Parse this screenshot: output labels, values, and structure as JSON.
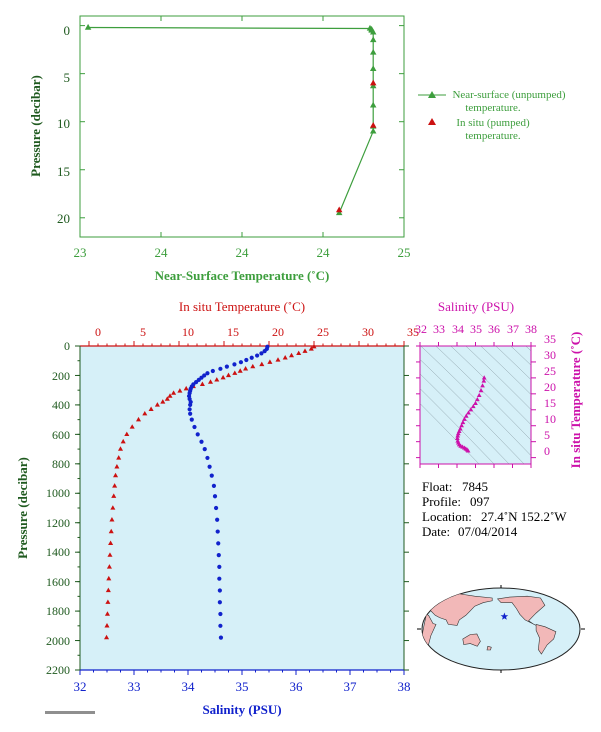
{
  "colors": {
    "green": "#3d9e3d",
    "dark_green": "#1f5a1f",
    "red": "#cc1111",
    "blue": "#1122cc",
    "magenta": "#cc11aa",
    "panel_bg": "#d6f0f8",
    "land": "#f2b8b8",
    "ocean": "#d6f0f8"
  },
  "chart_data": [
    {
      "type": "line",
      "xlabel": "Near-Surface Temperature (˚C)",
      "ylabel": "Pressure (decibar)",
      "xlim": [
        23,
        25
      ],
      "ylim": [
        22,
        -1
      ],
      "x_ticks": [
        "23",
        "24",
        "24",
        "24",
        "25"
      ],
      "x_tick_values": [
        23,
        23.5,
        24,
        24.5,
        25
      ],
      "y_ticks": [
        "0",
        "5",
        "10",
        "15",
        "20"
      ],
      "y_tick_values": [
        0,
        5,
        10,
        15,
        20
      ],
      "legend": {
        "placement": "right",
        "items": [
          {
            "line1": "Near-surface (unpumped)",
            "line2": "temperature.",
            "marker": "triangle-line"
          },
          {
            "line1": "In situ (pumped)",
            "line2": "temperature.",
            "marker": "triangle-red"
          }
        ]
      },
      "series": [
        {
          "name": "Near-surface (unpumped) temperature.",
          "x": [
            23.05,
            24.79,
            24.8,
            24.8,
            24.81,
            24.81,
            24.81,
            24.81,
            24.81,
            24.81,
            24.81,
            24.81,
            24.6
          ],
          "y": [
            0.2,
            0.3,
            0.4,
            0.5,
            0.7,
            1.5,
            2.8,
            4.5,
            6.3,
            8.3,
            10.5,
            11,
            19.5
          ]
        },
        {
          "name": "In situ (pumped) temperature.",
          "x": [
            24.81,
            24.81,
            24.6
          ],
          "y": [
            6.0,
            10.4,
            19.2
          ]
        }
      ]
    },
    {
      "type": "scatter",
      "title_top": "In situ Temperature (˚C)",
      "xlabel": "Salinity (PSU)",
      "ylabel": "Pressure (decibar)",
      "temp_lim": [
        -1,
        35
      ],
      "sal_lim": [
        32,
        38
      ],
      "ylim": [
        2200,
        0
      ],
      "temp_ticks": [
        "0",
        "5",
        "10",
        "15",
        "20",
        "25",
        "30",
        "35"
      ],
      "temp_tick_values": [
        0,
        5,
        10,
        15,
        20,
        25,
        30,
        35
      ],
      "sal_ticks": [
        "32",
        "33",
        "34",
        "35",
        "36",
        "37",
        "38"
      ],
      "sal_tick_values": [
        32,
        33,
        34,
        35,
        36,
        37,
        38
      ],
      "y_ticks": [
        "0",
        "200",
        "400",
        "600",
        "800",
        "1000",
        "1200",
        "1400",
        "1600",
        "1800",
        "2000",
        "2200"
      ],
      "y_tick_values": [
        0,
        200,
        400,
        600,
        800,
        1000,
        1200,
        1400,
        1600,
        1800,
        2000,
        2200
      ],
      "temperature_profile": {
        "p": [
          5,
          20,
          35,
          50,
          65,
          80,
          95,
          110,
          125,
          140,
          155,
          170,
          185,
          200,
          215,
          230,
          245,
          260,
          275,
          290,
          305,
          320,
          340,
          360,
          380,
          400,
          430,
          460,
          500,
          550,
          600,
          650,
          700,
          760,
          820,
          880,
          950,
          1020,
          1100,
          1180,
          1260,
          1340,
          1420,
          1500,
          1580,
          1660,
          1740,
          1820,
          1900,
          1980
        ],
        "t": [
          25.0,
          24.7,
          24.0,
          23.3,
          22.5,
          21.8,
          21.0,
          20.1,
          19.2,
          18.2,
          17.4,
          16.8,
          16.2,
          15.5,
          14.9,
          14.2,
          13.5,
          12.6,
          11.6,
          10.8,
          10.1,
          9.4,
          9.0,
          8.7,
          8.2,
          7.6,
          6.9,
          6.2,
          5.5,
          4.8,
          4.2,
          3.8,
          3.5,
          3.3,
          3.1,
          2.95,
          2.85,
          2.75,
          2.65,
          2.55,
          2.47,
          2.4,
          2.33,
          2.27,
          2.2,
          2.15,
          2.1,
          2.05,
          2.0,
          1.95
        ]
      },
      "salinity_profile": {
        "p": [
          5,
          20,
          35,
          50,
          65,
          80,
          95,
          110,
          125,
          140,
          155,
          170,
          185,
          200,
          215,
          230,
          245,
          260,
          275,
          290,
          305,
          320,
          340,
          360,
          380,
          400,
          430,
          460,
          500,
          550,
          600,
          650,
          700,
          760,
          820,
          880,
          950,
          1020,
          1100,
          1180,
          1260,
          1340,
          1420,
          1500,
          1580,
          1660,
          1740,
          1820,
          1900,
          1980
        ],
        "s": [
          35.47,
          35.46,
          35.42,
          35.36,
          35.28,
          35.18,
          35.08,
          34.98,
          34.86,
          34.72,
          34.6,
          34.46,
          34.36,
          34.3,
          34.25,
          34.2,
          34.15,
          34.1,
          34.07,
          34.05,
          34.04,
          34.03,
          34.02,
          34.03,
          34.05,
          34.04,
          34.03,
          34.04,
          34.07,
          34.12,
          34.18,
          34.25,
          34.31,
          34.36,
          34.4,
          34.44,
          34.48,
          34.5,
          34.52,
          34.54,
          34.55,
          34.56,
          34.57,
          34.58,
          34.58,
          34.59,
          34.59,
          34.6,
          34.6,
          34.61
        ]
      }
    },
    {
      "type": "scatter",
      "title_top": "Salinity (PSU)",
      "ylabel": "In situ Temperature (˚C)",
      "sal_lim": [
        32,
        38
      ],
      "temp_lim": [
        -2,
        35
      ],
      "sal_ticks": [
        "32",
        "33",
        "34",
        "35",
        "36",
        "37",
        "38"
      ],
      "sal_tick_values": [
        32,
        33,
        34,
        35,
        36,
        37,
        38
      ],
      "temp_ticks": [
        "0",
        "5",
        "10",
        "15",
        "20",
        "25",
        "30",
        "35"
      ],
      "temp_tick_values": [
        0,
        5,
        10,
        15,
        20,
        25,
        30,
        35
      ],
      "points_s": [
        35.47,
        35.45,
        35.38,
        35.3,
        35.2,
        35.1,
        35.0,
        34.88,
        34.75,
        34.62,
        34.5,
        34.4,
        34.32,
        34.25,
        34.18,
        34.12,
        34.07,
        34.04,
        34.02,
        34.04,
        34.07,
        34.12,
        34.2,
        34.3,
        34.4,
        34.48,
        34.55,
        34.6
      ],
      "points_t": [
        25.0,
        24.0,
        22.5,
        21.0,
        19.5,
        18.2,
        17.0,
        16.0,
        15.0,
        14.0,
        13.0,
        12.0,
        11.0,
        10.0,
        9.0,
        8.2,
        7.5,
        6.8,
        6.0,
        5.2,
        4.6,
        4.0,
        3.6,
        3.3,
        3.0,
        2.7,
        2.4,
        2.1
      ]
    }
  ],
  "info": {
    "float_label": "Float:",
    "float_value": "7845",
    "profile_label": "Profile:",
    "profile_value": "097",
    "location_label": "Location:",
    "location_value": "27.4˚N  152.2˚W",
    "date_label": "Date:",
    "date_value": "07/04/2014"
  },
  "map": {
    "float_lon": -152.2,
    "float_lat": 27.4,
    "marker": "star"
  }
}
